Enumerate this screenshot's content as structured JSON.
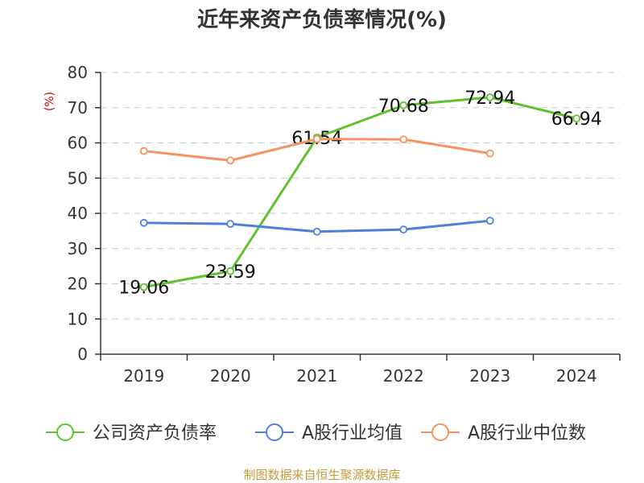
{
  "chart_data": {
    "type": "line",
    "title": "近年来资产负债率情况(%)",
    "ylabel": "(%)",
    "xlabel": "",
    "categories": [
      "2019",
      "2020",
      "2021",
      "2022",
      "2023",
      "2024"
    ],
    "ylim": [
      0,
      80
    ],
    "yticks": [
      0,
      10,
      20,
      30,
      40,
      50,
      60,
      70,
      80
    ],
    "grid": true,
    "legend_position": "bottom",
    "series": [
      {
        "name": "公司资产负债率",
        "color": "#5fc12e",
        "values": [
          19.06,
          23.59,
          61.54,
          70.68,
          72.94,
          66.94
        ],
        "labels": [
          "19.06",
          "23.59",
          "61.54",
          "70.68",
          "72.94",
          "66.94"
        ]
      },
      {
        "name": "A股行业均值",
        "color": "#4f7fd8",
        "values": [
          37.3,
          37.0,
          34.8,
          35.4,
          37.9,
          null
        ]
      },
      {
        "name": "A股行业中位数",
        "color": "#f5925f",
        "values": [
          57.7,
          55.0,
          61.1,
          61.0,
          57.0,
          null
        ]
      }
    ]
  },
  "source": "制图数据来自恒生聚源数据库"
}
